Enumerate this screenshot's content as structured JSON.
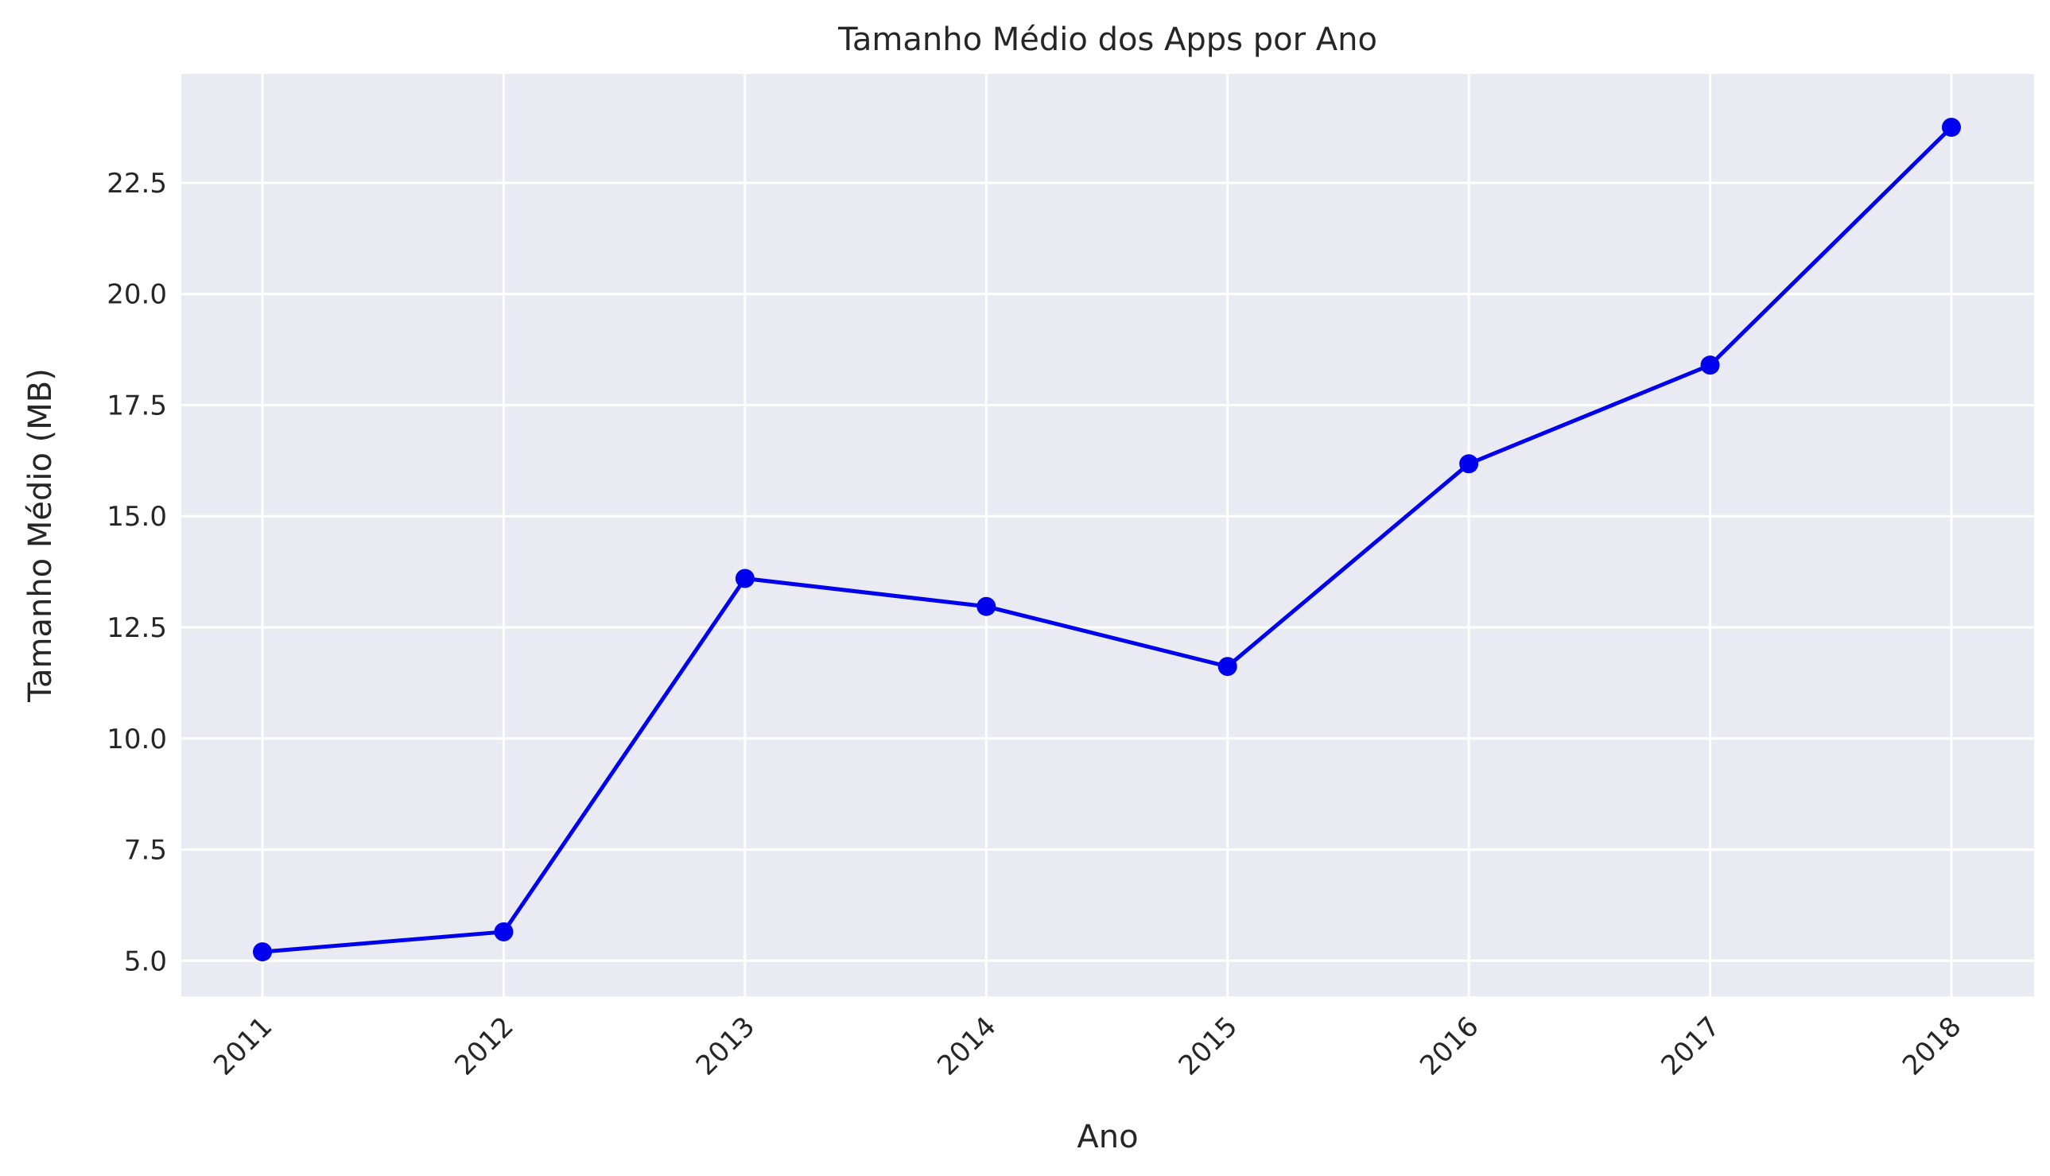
{
  "chart_data": {
    "type": "line",
    "title": "Tamanho Médio dos Apps por Ano",
    "xlabel": "Ano",
    "ylabel": "Tamanho Médio (MB)",
    "categories": [
      "2011",
      "2012",
      "2013",
      "2014",
      "2015",
      "2016",
      "2017",
      "2018"
    ],
    "values": [
      5.2,
      5.65,
      13.6,
      12.97,
      11.62,
      16.18,
      18.4,
      23.75
    ],
    "ylim": [
      4.2,
      24.95
    ],
    "yticks": [
      "5.0",
      "7.5",
      "10.0",
      "12.5",
      "15.0",
      "17.5",
      "20.0",
      "22.5"
    ],
    "grid": true,
    "line_color": "#0000ee",
    "marker_color": "#0000ee",
    "background_color": "#eaeaf2",
    "grid_color": "#ffffff"
  }
}
